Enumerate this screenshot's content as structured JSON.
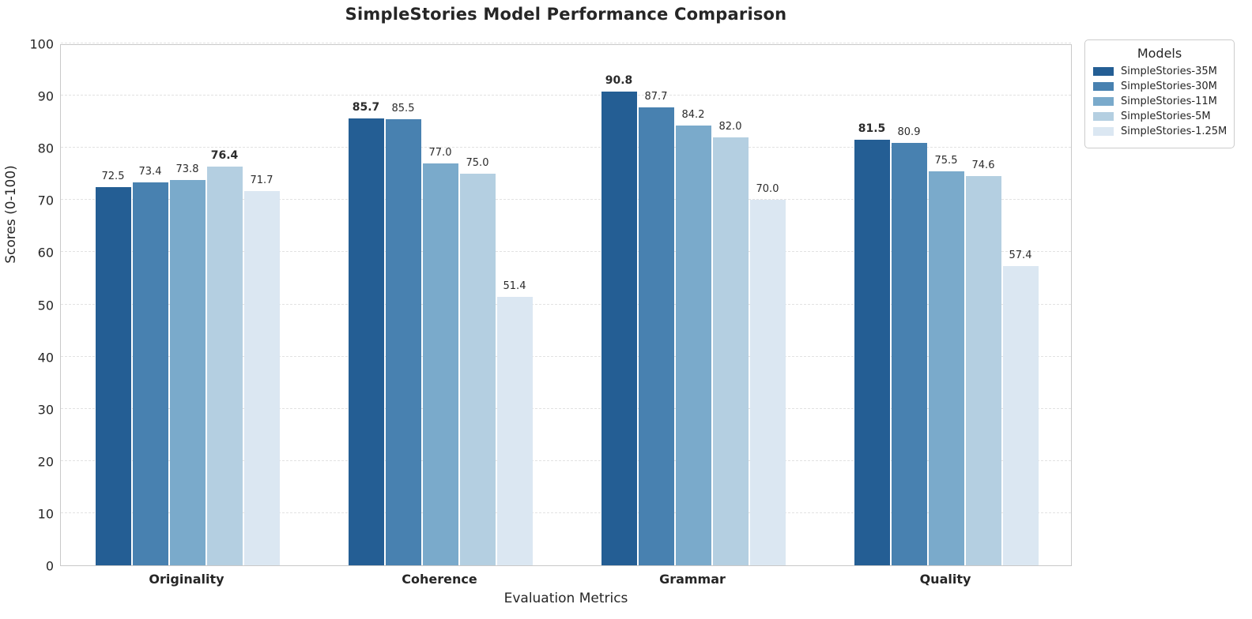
{
  "chart_data": {
    "type": "bar",
    "title": "SimpleStories Model Performance Comparison",
    "xlabel": "Evaluation Metrics",
    "ylabel": "Scores (0-100)",
    "ylim": [
      0,
      100
    ],
    "ytick_step": 10,
    "yticks": [
      0,
      10,
      20,
      30,
      40,
      50,
      60,
      70,
      80,
      90,
      100
    ],
    "grid": "horizontal-dashed",
    "categories": [
      "Originality",
      "Coherence",
      "Grammar",
      "Quality"
    ],
    "series": [
      {
        "name": "SimpleStories-35M",
        "color": "#245e94",
        "values": [
          72.5,
          85.7,
          90.8,
          81.5
        ]
      },
      {
        "name": "SimpleStories-30M",
        "color": "#4881b0",
        "values": [
          73.4,
          85.5,
          87.7,
          80.9
        ]
      },
      {
        "name": "SimpleStories-11M",
        "color": "#7aaacb",
        "values": [
          73.8,
          77.0,
          84.2,
          75.5
        ]
      },
      {
        "name": "SimpleStories-5M",
        "color": "#b4cfe1",
        "values": [
          76.4,
          75.0,
          82.0,
          74.6
        ]
      },
      {
        "name": "SimpleStories-1.25M",
        "color": "#dbe7f2",
        "values": [
          71.7,
          51.4,
          70.0,
          57.4
        ]
      }
    ],
    "value_label_format": "one-decimal",
    "value_label_bold_rule": "max-per-category",
    "legend": {
      "title": "Models",
      "position": "outside-top-right"
    },
    "colors": {
      "grid": "#e2e2e2",
      "spine": "#c9c9c9",
      "text": "#262626"
    }
  }
}
